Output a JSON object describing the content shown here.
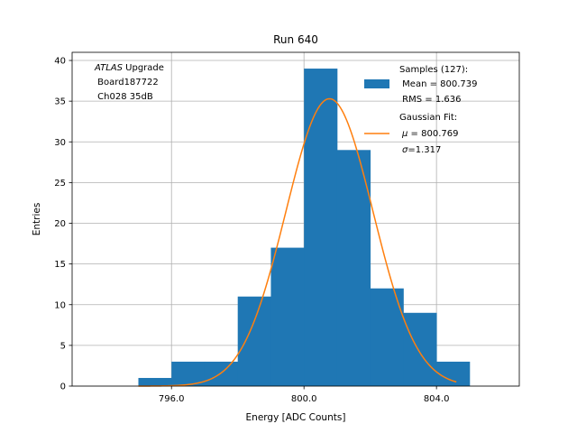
{
  "chart_data": {
    "type": "bar",
    "title": "Run 640",
    "xlabel": "Energy [ADC Counts]",
    "ylabel": "Entries",
    "xlim": [
      793,
      806.5
    ],
    "ylim": [
      0,
      41
    ],
    "xticks": [
      796.0,
      800.0,
      804.0
    ],
    "xtick_labels": [
      "796.0",
      "800.0",
      "804.0"
    ],
    "yticks": [
      0,
      5,
      10,
      15,
      20,
      25,
      30,
      35,
      40
    ],
    "ytick_labels": [
      "0",
      "5",
      "10",
      "15",
      "20",
      "25",
      "30",
      "35",
      "40"
    ],
    "grid": true,
    "histogram": {
      "bin_edges": [
        795,
        796,
        797,
        798,
        799,
        800,
        801,
        802,
        803,
        804,
        805
      ],
      "counts": [
        1,
        3,
        3,
        11,
        17,
        39,
        29,
        12,
        9,
        3
      ],
      "color": "#1f77b4"
    },
    "fit": {
      "mu": 800.769,
      "sigma": 1.317,
      "peak": 35.3,
      "x_range": [
        795,
        804.6
      ],
      "color": "#ff7f0e"
    },
    "legend": {
      "placement": "top-right",
      "samples_lines": [
        "Samples (127):",
        " Mean = 800.739",
        " RMS = 1.636"
      ],
      "fit_title": "Gaussian Fit:",
      "fit_mu_symbol": "μ",
      "fit_mu_value": " = 800.769",
      "fit_sigma_symbol": "σ",
      "fit_sigma_value": "=1.317"
    },
    "annotation": {
      "placement": "top-left",
      "italic_word": "ATLAS",
      "rest_line1": " Upgrade",
      "line2": " Board187722",
      "line3": " Ch028 35dB"
    }
  }
}
